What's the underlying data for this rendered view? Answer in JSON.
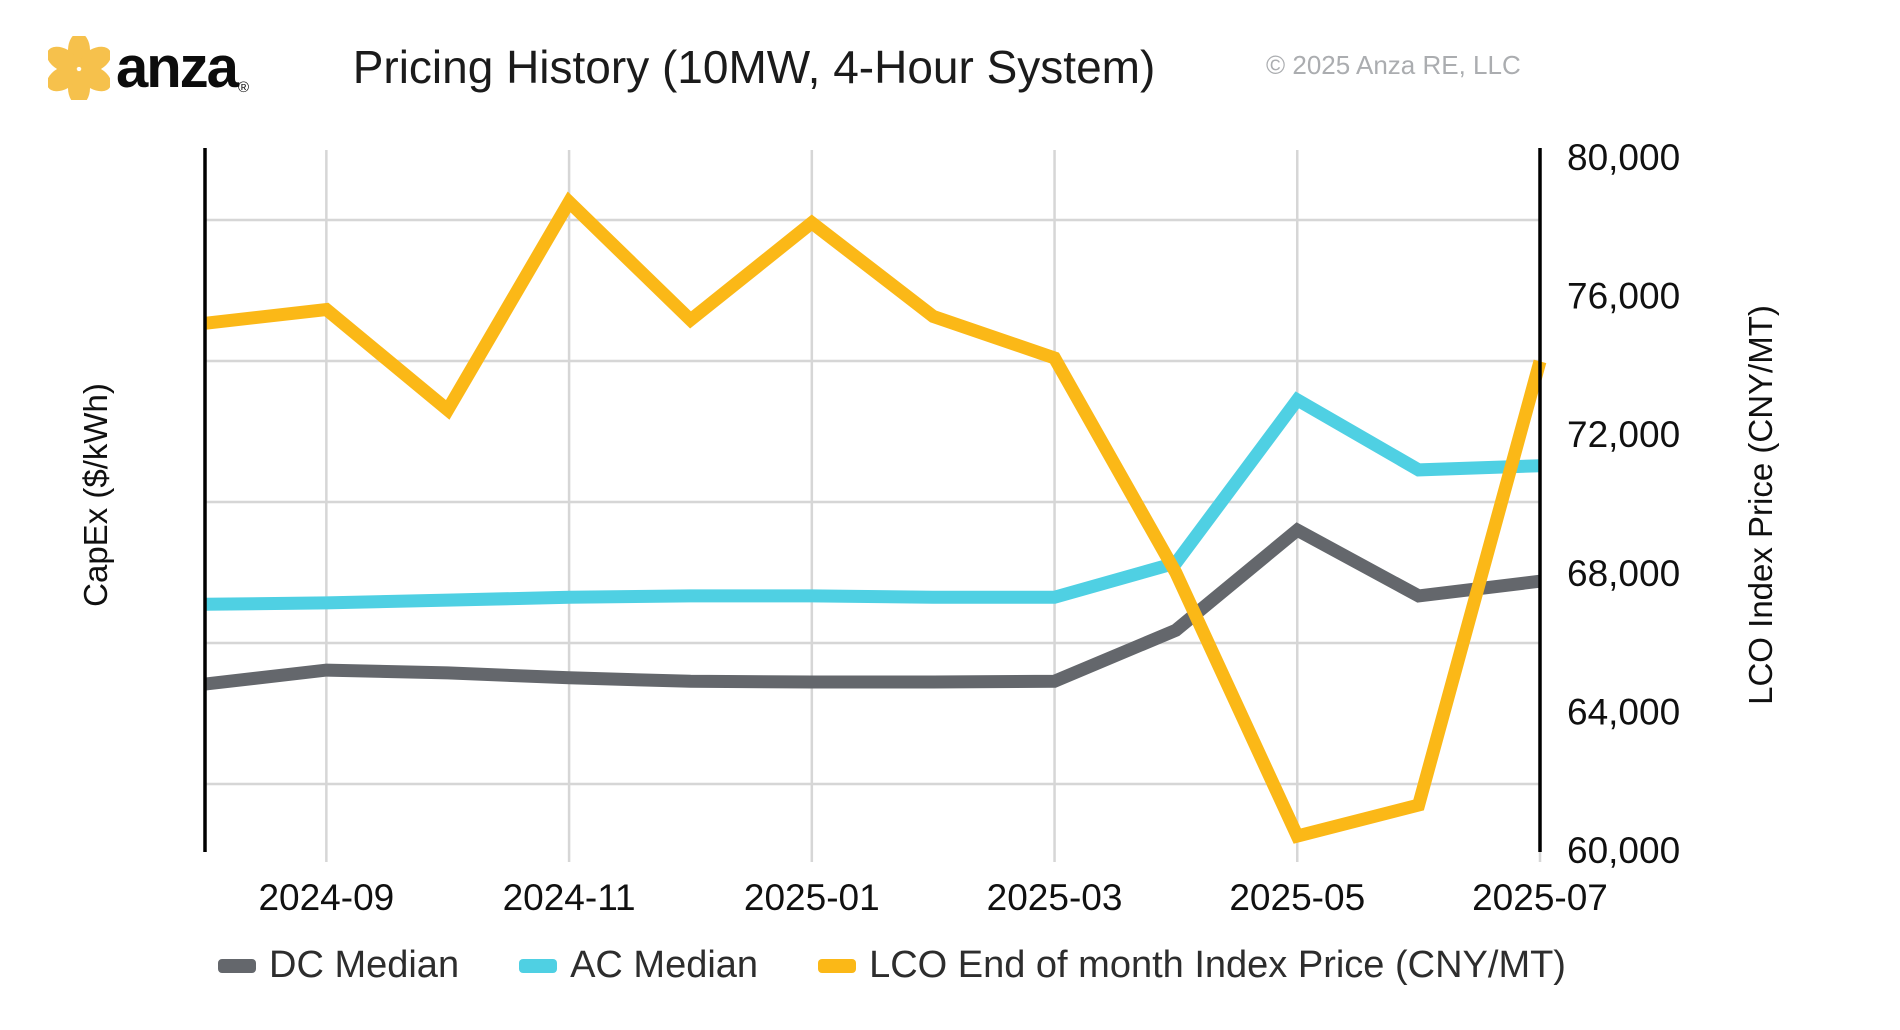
{
  "header": {
    "logo_text": "anza",
    "logo_registered": "®",
    "title": "Pricing History (10MW, 4-Hour System)",
    "copyright": "© 2025 Anza RE, LLC"
  },
  "chart_data": {
    "type": "line",
    "title": "Pricing History (10MW, 4-Hour System)",
    "months": [
      "2024-08",
      "2024-09",
      "2024-10",
      "2024-11",
      "2024-12",
      "2025-01",
      "2025-02",
      "2025-03",
      "2025-04",
      "2025-05",
      "2025-06",
      "2025-07"
    ],
    "x_ticks": [
      {
        "label": "2024-09",
        "month_index": 1
      },
      {
        "label": "2024-11",
        "month_index": 3
      },
      {
        "label": "2025-01",
        "month_index": 5
      },
      {
        "label": "2025-03",
        "month_index": 7
      },
      {
        "label": "2025-05",
        "month_index": 9
      },
      {
        "label": "2025-07",
        "month_index": 11
      }
    ],
    "left_axis": {
      "title": "CapEx ($/kWh)",
      "tick_labels_visible": false,
      "note": "no numeric tick labels shown; series given as fraction of plot height from bottom"
    },
    "right_axis": {
      "title": "LCO Index Price (CNY/MT)",
      "tick_labels": [
        "80,000",
        "76,000",
        "72,000",
        "68,000",
        "64,000",
        "60,000"
      ],
      "range": [
        60000,
        80000
      ]
    },
    "grid": true,
    "legend_position": "bottom",
    "series": [
      {
        "name": "DC Median",
        "axis": "left",
        "color": "#64676c",
        "y_fraction_of_plot": [
          0.237,
          0.257,
          0.253,
          0.246,
          0.241,
          0.24,
          0.24,
          0.241,
          0.314,
          0.457,
          0.363,
          0.384
        ]
      },
      {
        "name": "AC Median",
        "axis": "left",
        "color": "#4fd0e3",
        "y_fraction_of_plot": [
          0.351,
          0.353,
          0.357,
          0.361,
          0.363,
          0.363,
          0.361,
          0.361,
          0.41,
          0.643,
          0.543,
          0.549
        ]
      },
      {
        "name": "LCO End of month Index Price (CNY/MT)",
        "axis": "right",
        "color": "#fbb817",
        "values": [
          75200,
          75600,
          72700,
          78700,
          75300,
          78100,
          75400,
          74200,
          68000,
          60400,
          61300,
          74100
        ]
      }
    ]
  },
  "legend": {
    "items": [
      {
        "label": "DC Median",
        "color": "#64676c"
      },
      {
        "label": "AC Median",
        "color": "#4fd0e3"
      },
      {
        "label": "LCO End of month Index Price (CNY/MT)",
        "color": "#fbb817"
      }
    ]
  },
  "colors": {
    "logo_flower": "#f6c14c",
    "gridline": "#d6d6d6",
    "axis_spine": "#000000",
    "title_text": "#1b1b1b",
    "copyright_text": "#abadb0"
  }
}
